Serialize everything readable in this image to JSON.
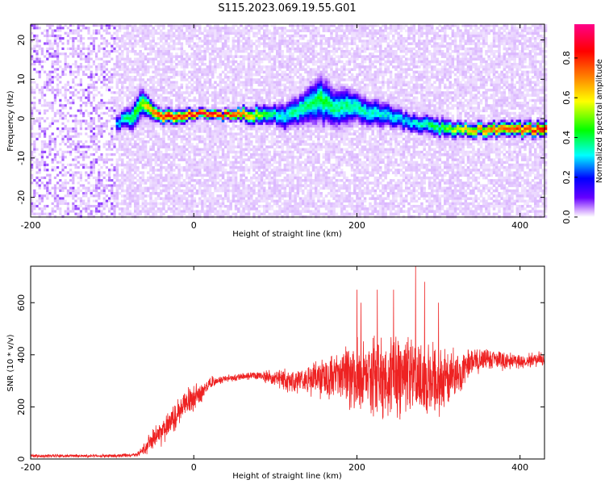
{
  "title": "S115.2023.069.19.55.G01",
  "colors": {
    "snr_line": "#ee2222",
    "background": "#ffffff",
    "frame": "#000000"
  },
  "chart_data": [
    {
      "type": "heatmap",
      "name": "spectrogram",
      "xlabel": "Height of straight line (km)",
      "ylabel": "Frequency (Hz)",
      "xlim": [
        -200,
        430
      ],
      "ylim": [
        -25,
        24
      ],
      "xticks": [
        -200,
        0,
        200,
        400
      ],
      "yticks": [
        -20,
        -10,
        0,
        10,
        20
      ],
      "colorbar": {
        "label": "Normalized spectral amplitude",
        "range": [
          0,
          0.97
        ],
        "ticks": [
          0.0,
          0.2,
          0.4,
          0.6,
          0.8
        ],
        "colormap": [
          "#ffffff",
          "#cc99ff",
          "#6600ff",
          "#0000ff",
          "#00ffff",
          "#00ff00",
          "#ffff00",
          "#ff8800",
          "#ff0000",
          "#ff0088"
        ]
      },
      "noise_region_x": [
        -200,
        -97
      ],
      "ridge": {
        "x": [
          -95,
          -85,
          -75,
          -65,
          -55,
          -45,
          -35,
          -25,
          -15,
          0,
          20,
          40,
          60,
          80,
          95,
          110,
          125,
          140,
          155,
          170,
          185,
          200,
          220,
          240,
          260,
          280,
          300,
          330,
          360,
          390,
          430
        ],
        "frequency": [
          -1,
          0.5,
          1,
          5,
          3,
          1,
          1,
          1,
          1.2,
          1.5,
          1.5,
          1.2,
          1.5,
          1,
          1.5,
          1,
          2,
          4,
          5,
          3,
          3,
          3,
          1.5,
          1,
          -0.5,
          -1,
          -2,
          -2.5,
          -2.5,
          -2.5,
          -2.5
        ],
        "width": [
          2,
          2,
          3,
          3,
          2,
          1.5,
          1.5,
          1.5,
          1.5,
          1,
          1,
          1,
          1.5,
          2,
          2,
          3,
          3,
          4,
          5,
          4,
          4,
          3,
          3,
          2.5,
          2,
          2,
          2,
          1.5,
          1.5,
          1.5,
          1.5
        ],
        "amplitude": [
          0.4,
          0.5,
          0.55,
          0.6,
          0.75,
          0.85,
          0.9,
          0.85,
          0.85,
          0.95,
          0.95,
          0.9,
          0.8,
          0.6,
          0.5,
          0.45,
          0.5,
          0.5,
          0.55,
          0.5,
          0.5,
          0.5,
          0.45,
          0.45,
          0.45,
          0.5,
          0.55,
          0.7,
          0.8,
          0.85,
          0.9
        ]
      }
    },
    {
      "type": "line",
      "name": "snr",
      "xlabel": "Height of straight line (km)",
      "ylabel": "SNR (10 * v/v)",
      "xlim": [
        -200,
        430
      ],
      "ylim": [
        0,
        740
      ],
      "xticks": [
        -200,
        0,
        200,
        400
      ],
      "yticks": [
        0,
        200,
        400,
        600
      ],
      "x": [
        -200,
        -150,
        -100,
        -70,
        -60,
        -50,
        -40,
        -30,
        -20,
        -10,
        0,
        10,
        20,
        30,
        40,
        60,
        80,
        100,
        120,
        140,
        160,
        180,
        200,
        220,
        240,
        260,
        280,
        300,
        320,
        340,
        360,
        380,
        400,
        430
      ],
      "mean": [
        12,
        12,
        12,
        15,
        40,
        80,
        100,
        140,
        170,
        220,
        230,
        260,
        290,
        300,
        310,
        315,
        320,
        310,
        300,
        300,
        310,
        320,
        310,
        310,
        310,
        320,
        310,
        300,
        320,
        370,
        390,
        375,
        375,
        385
      ],
      "spread": [
        8,
        8,
        8,
        8,
        30,
        50,
        60,
        70,
        70,
        60,
        60,
        50,
        30,
        20,
        15,
        15,
        20,
        35,
        55,
        75,
        95,
        120,
        160,
        170,
        180,
        190,
        200,
        160,
        110,
        60,
        45,
        40,
        35,
        30
      ],
      "peaks": [
        [
          200,
          650
        ],
        [
          205,
          600
        ],
        [
          225,
          650
        ],
        [
          245,
          650
        ],
        [
          272,
          740
        ],
        [
          283,
          680
        ],
        [
          300,
          600
        ]
      ]
    }
  ]
}
